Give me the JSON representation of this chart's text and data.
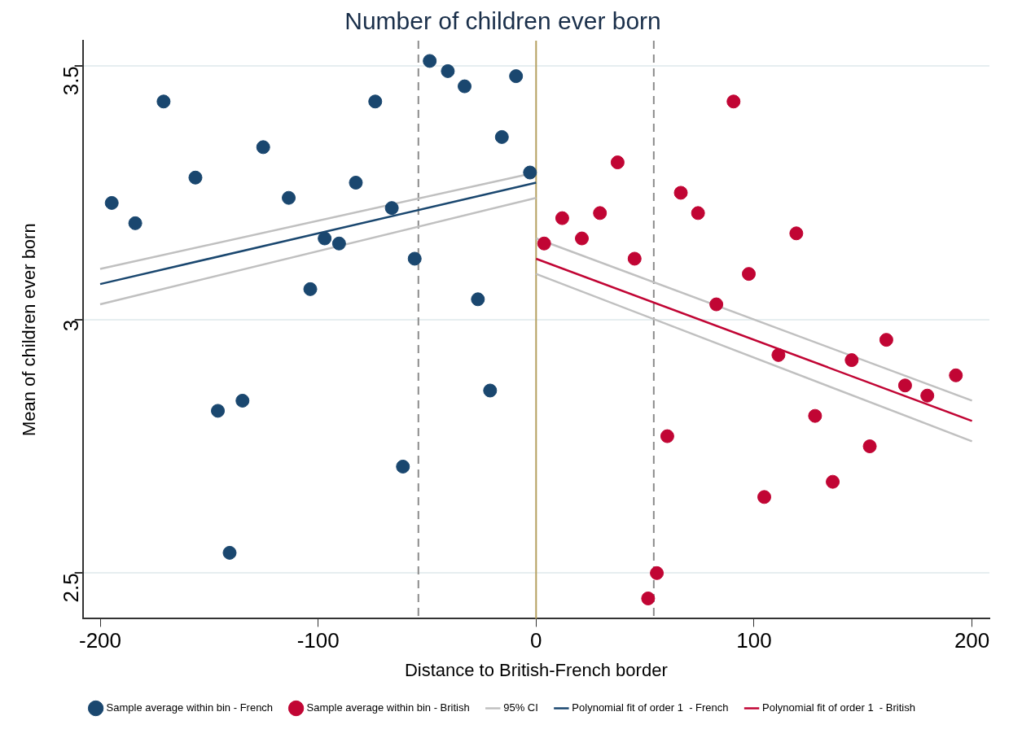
{
  "chart_data": {
    "type": "scatter",
    "title": "Number of children ever born",
    "xlabel": "Distance to British-French border",
    "ylabel": "Mean of children ever born",
    "xlim": [
      -208,
      208
    ],
    "ylim": [
      2.41,
      3.55
    ],
    "xticks": [
      -200,
      -100,
      0,
      100,
      200
    ],
    "yticks": [
      2.5,
      3,
      3.5
    ],
    "grid": "y",
    "legend": "bottom",
    "series": [
      {
        "name": "Sample average within bin - French",
        "color": "#1a476f",
        "marker": "circle",
        "x": [
          -194.7,
          -183.9,
          -170.9,
          -156.3,
          -146,
          -140.6,
          -134.7,
          -125.2,
          -113.5,
          -103.6,
          -97,
          -90.4,
          -82.7,
          -73.8,
          -66.2,
          -61.1,
          -55.7,
          -48.8,
          -40.5,
          -32.8,
          -26.7,
          -21.1,
          -15.7,
          -9.2,
          -2.8
        ],
        "values": [
          3.23,
          3.19,
          3.43,
          3.28,
          2.82,
          2.54,
          2.84,
          3.34,
          3.24,
          3.06,
          3.16,
          3.15,
          3.27,
          3.43,
          3.22,
          2.71,
          3.12,
          3.51,
          3.49,
          3.46,
          3.04,
          2.86,
          3.36,
          3.48,
          3.29
        ]
      },
      {
        "name": "Sample average within bin - British",
        "color": "#c10534",
        "marker": "circle",
        "x": [
          3.7,
          12,
          21,
          29.3,
          37.4,
          45.2,
          51.4,
          55.4,
          60.2,
          66.4,
          74.3,
          82.7,
          90.6,
          97.6,
          104.7,
          111.2,
          119.4,
          128,
          136.1,
          144.8,
          153.1,
          160.7,
          169.3,
          179.5,
          192.6
        ],
        "values": [
          3.15,
          3.2,
          3.16,
          3.21,
          3.31,
          3.12,
          2.45,
          2.5,
          2.77,
          3.25,
          3.21,
          3.03,
          3.43,
          3.09,
          2.65,
          2.93,
          3.17,
          2.81,
          2.68,
          2.92,
          2.75,
          2.96,
          2.87,
          2.85,
          2.89
        ]
      },
      {
        "name": "95% CI",
        "color": "#c0c0c0",
        "type": "line",
        "x": [
          -200,
          0
        ],
        "values": [
          3.1,
          3.29
        ]
      },
      {
        "color": "#c0c0c0",
        "type": "line",
        "x": [
          -200,
          0
        ],
        "values": [
          3.03,
          3.24
        ]
      },
      {
        "color": "#c0c0c0",
        "type": "line",
        "x": [
          0,
          200
        ],
        "values": [
          3.16,
          2.84
        ]
      },
      {
        "color": "#c0c0c0",
        "type": "line",
        "x": [
          0,
          200
        ],
        "values": [
          3.09,
          2.76
        ]
      },
      {
        "name": "Polynomial fit of order 1  - French",
        "color": "#1a476f",
        "type": "line",
        "x": [
          -200,
          0
        ],
        "values": [
          3.07,
          3.27
        ]
      },
      {
        "name": "Polynomial fit of order 1  - British",
        "color": "#c10534",
        "type": "line",
        "x": [
          0,
          200
        ],
        "values": [
          3.12,
          2.8
        ]
      }
    ],
    "ref_lines": [
      {
        "axis": "x",
        "value": -54,
        "color": "#8c8c8c",
        "line_style": "dashed"
      },
      {
        "axis": "x",
        "value": 0,
        "color": "#b5a060",
        "line_style": "solid"
      },
      {
        "axis": "x",
        "value": 54,
        "color": "#8c8c8c",
        "line_style": "dashed"
      }
    ]
  }
}
